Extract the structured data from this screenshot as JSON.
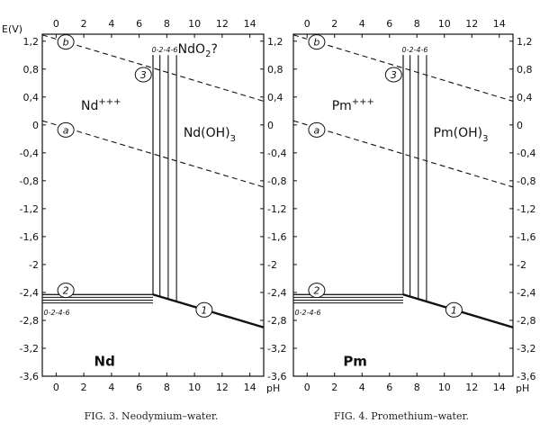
{
  "chart_data": [
    {
      "type": "line",
      "caption": "FIG. 3. Neodymium–water.",
      "xlabel": "pH",
      "ylabel": "E(V)",
      "xlim": [
        -1,
        15
      ],
      "ylim": [
        -3.6,
        1.3
      ],
      "x_ticks": [
        0,
        2,
        4,
        6,
        8,
        10,
        12,
        14
      ],
      "y_tick_labels": [
        "1,2",
        "0,8",
        "0,4",
        "0",
        "-0,4",
        "-0,8",
        "-1,2",
        "-1,6",
        "-2",
        "-2,4",
        "-2,8",
        "-3,2",
        "-3,6"
      ],
      "y_ticks": [
        1.2,
        0.8,
        0.4,
        0,
        -0.4,
        -0.8,
        -1.2,
        -1.6,
        -2,
        -2.4,
        -2.8,
        -3.2,
        -3.6
      ],
      "region_labels": {
        "metal": "Nd",
        "ion": "Nd+++",
        "hydroxide": "Nd(OH)3",
        "oxide": "NdO2?"
      },
      "line_markers": {
        "one": "1",
        "two": "2",
        "three": "3",
        "a": "a",
        "b": "b"
      },
      "concentration_labels": "0-2-4-6",
      "series": [
        {
          "marker": "a",
          "style": "dashed",
          "x": [
            -1,
            15
          ],
          "y": [
            0.06,
            -0.89
          ]
        },
        {
          "marker": "b",
          "style": "dashed",
          "x": [
            -1,
            15
          ],
          "y": [
            1.29,
            0.34
          ]
        },
        {
          "marker": "1",
          "style": "thick",
          "x": [
            7.0,
            15
          ],
          "y": [
            -2.43,
            -2.9
          ]
        },
        {
          "marker": "2",
          "style": "solid",
          "x": [
            -1,
            7.0
          ],
          "y": [
            -2.43,
            -2.43
          ]
        },
        {
          "marker": "3",
          "style": "solid",
          "x": [
            7.0,
            7.0
          ],
          "y": [
            -2.43,
            1.0
          ]
        }
      ],
      "family_lines": {
        "horizontal_y": [
          -2.43,
          -2.47,
          -2.51,
          -2.55
        ],
        "vertical_x": [
          7.0,
          7.5,
          8.1,
          8.7
        ]
      }
    },
    {
      "type": "line",
      "caption": "FIG. 4. Promethium–water.",
      "xlabel": "pH",
      "ylabel": "",
      "xlim": [
        -1,
        15
      ],
      "ylim": [
        -3.6,
        1.3
      ],
      "x_ticks": [
        0,
        2,
        4,
        6,
        8,
        10,
        12,
        14
      ],
      "y_tick_labels": [
        "1,2",
        "0,8",
        "0,4",
        "0",
        "-0,4",
        "-0,8",
        "-1,2",
        "-1,6",
        "-2",
        "-2,4",
        "-2,8",
        "-3,2",
        "-3,6"
      ],
      "y_ticks": [
        1.2,
        0.8,
        0.4,
        0,
        -0.4,
        -0.8,
        -1.2,
        -1.6,
        -2,
        -2.4,
        -2.8,
        -3.2,
        -3.6
      ],
      "region_labels": {
        "metal": "Pm",
        "ion": "Pm+++",
        "hydroxide": "Pm(OH)3"
      },
      "line_markers": {
        "one": "1",
        "two": "2",
        "three": "3",
        "a": "a",
        "b": "b"
      },
      "concentration_labels": "0-2-4-6",
      "series": [
        {
          "marker": "a",
          "style": "dashed",
          "x": [
            -1,
            15
          ],
          "y": [
            0.06,
            -0.89
          ]
        },
        {
          "marker": "b",
          "style": "dashed",
          "x": [
            -1,
            15
          ],
          "y": [
            1.29,
            0.34
          ]
        },
        {
          "marker": "1",
          "style": "thick",
          "x": [
            7.0,
            15
          ],
          "y": [
            -2.43,
            -2.9
          ]
        },
        {
          "marker": "2",
          "style": "solid",
          "x": [
            -1,
            7.0
          ],
          "y": [
            -2.43,
            -2.43
          ]
        },
        {
          "marker": "3",
          "style": "solid",
          "x": [
            7.0,
            7.0
          ],
          "y": [
            -2.43,
            1.0
          ]
        }
      ],
      "family_lines": {
        "horizontal_y": [
          -2.43,
          -2.47,
          -2.51,
          -2.55
        ],
        "vertical_x": [
          7.0,
          7.5,
          8.1,
          8.7
        ]
      }
    }
  ]
}
